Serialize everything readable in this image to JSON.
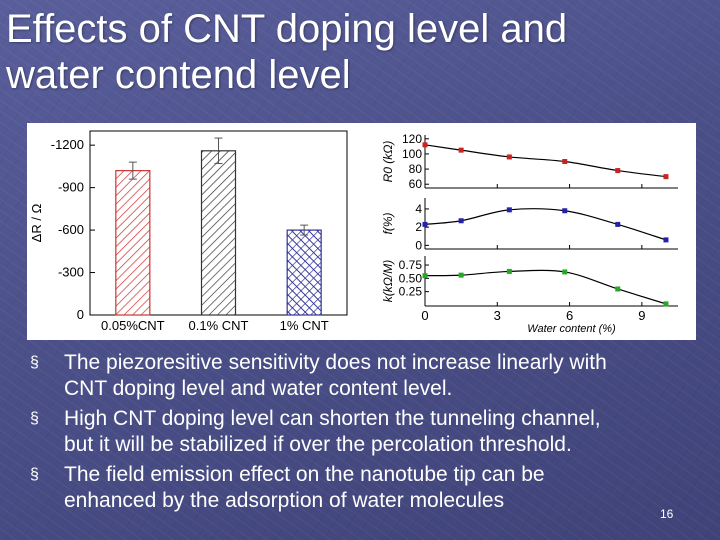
{
  "title_lines": [
    "Effects of CNT doping level and",
    "water contend level"
  ],
  "bullets": [
    {
      "marker": "§",
      "lines": [
        "The piezoresitive sensitivity does not increase linearly with",
        "CNT doping level and water content level."
      ]
    },
    {
      "marker": "§",
      "lines": [
        "High CNT doping level can shorten the tunneling channel,",
        "but it will be stabilized if over the percolation threshold."
      ]
    },
    {
      "marker": "§",
      "lines": [
        "The field emission effect on the nanotube tip can be",
        "enhanced by the adsorption of water molecules"
      ]
    }
  ],
  "slide_number": "16",
  "chart_data": [
    {
      "type": "bar",
      "categories": [
        "0.05%CNT",
        "0.1% CNT",
        "1% CNT"
      ],
      "values": [
        -1020,
        -1160,
        -600
      ],
      "errors": [
        60,
        90,
        35
      ],
      "ylabel": "ΔR / Ω",
      "ylim": [
        0,
        -1300
      ],
      "yticks": [
        "0",
        "-300",
        "-600",
        "-900",
        "-1200"
      ],
      "ytick_values": [
        0,
        -300,
        -600,
        -900,
        -1200
      ],
      "colors": [
        "#cc3333",
        "#333333",
        "#333399"
      ],
      "hatch": "diagonal"
    },
    {
      "type": "line",
      "xlabel": "Water content (%)",
      "xticks": [
        "0",
        "3",
        "6",
        "9"
      ],
      "xtick_values": [
        0,
        3,
        6,
        9
      ],
      "xlim": [
        0,
        10.5
      ],
      "panels": [
        {
          "ylabel": "R0 (kΩ)",
          "yticks": [
            "60",
            "80",
            "100",
            "120"
          ],
          "ytick_values": [
            60,
            80,
            100,
            120
          ],
          "ylim": [
            55,
            125
          ],
          "color": "#cc2222",
          "x": [
            0,
            1.5,
            3.5,
            5.8,
            8,
            10
          ],
          "y": [
            112,
            105,
            96,
            90,
            78,
            70
          ]
        },
        {
          "ylabel": "f(%)",
          "yticks": [
            "0",
            "2",
            "4"
          ],
          "ytick_values": [
            0,
            2,
            4
          ],
          "ylim": [
            -0.4,
            5.2
          ],
          "color": "#2222aa",
          "x": [
            0,
            1.5,
            3.5,
            5.8,
            8,
            10
          ],
          "y": [
            2.3,
            2.7,
            3.9,
            3.8,
            2.3,
            0.6
          ]
        },
        {
          "ylabel": "k(kΩ/M)",
          "yticks": [
            "0.25",
            "0.50",
            "0.75"
          ],
          "ytick_values": [
            0.25,
            0.5,
            0.75
          ],
          "ylim": [
            -0.02,
            0.92
          ],
          "color": "#22aa22",
          "x": [
            0,
            1.5,
            3.5,
            5.8,
            8,
            10
          ],
          "y": [
            0.55,
            0.56,
            0.63,
            0.62,
            0.3,
            0.02
          ]
        }
      ]
    }
  ]
}
